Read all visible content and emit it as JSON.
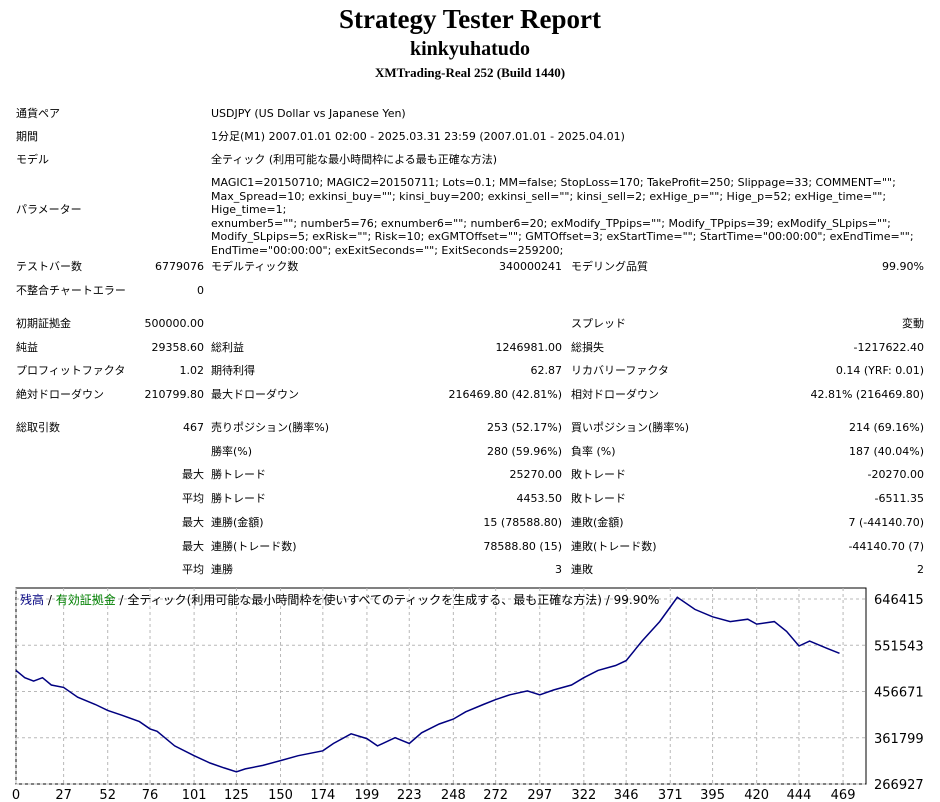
{
  "report": {
    "title": "Strategy Tester Report",
    "account": "kinkyuhatudo",
    "server": "XMTrading-Real 252 (Build 1440)"
  },
  "settings": {
    "pair_label": "通貨ペア",
    "pair_value": "USDJPY (US Dollar vs Japanese Yen)",
    "period_label": "期間",
    "period_value": "1分足(M1) 2007.01.01 02:00 - 2025.03.31 23:59 (2007.01.01 - 2025.04.01)",
    "model_label": "モデル",
    "model_value": "全ティック (利用可能な最小時間枠による最も正確な方法)",
    "params_label": "パラメーター",
    "params_value": "MAGIC1=20150710; MAGIC2=20150711; Lots=0.1; MM=false; StopLoss=170; TakeProfit=250; Slippage=33; COMMENT=\"\";\nMax_Spread=10; exkinsi_buy=\"\"; kinsi_buy=200; exkinsi_sell=\"\"; kinsi_sell=2; exHige_p=\"\"; Hige_p=52; exHige_time=\"\"; Hige_time=1;\nexnumber5=\"\"; number5=76; exnumber6=\"\"; number6=20; exModify_TPpips=\"\"; Modify_TPpips=39; exModify_SLpips=\"\";\nModify_SLpips=5; exRisk=\"\"; Risk=10; exGMTOffset=\"\"; GMTOffset=3; exStartTime=\"\"; StartTime=\"00:00:00\"; exEndTime=\"\";\nEndTime=\"00:00:00\"; exExitSeconds=\"\"; ExitSeconds=259200;"
  },
  "stats": {
    "bars_label": "テストバー数",
    "bars_value": "6779076",
    "ticks_label": "モデルティック数",
    "ticks_value": "340000241",
    "quality_label": "モデリング品質",
    "quality_value": "99.90%",
    "mismatch_label": "不整合チャートエラー",
    "mismatch_value": "0",
    "deposit_label": "初期証拠金",
    "deposit_value": "500000.00",
    "spread_label": "スプレッド",
    "spread_value": "変動",
    "net_label": "純益",
    "net_value": "29358.60",
    "gross_profit_label": "総利益",
    "gross_profit_value": "1246981.00",
    "gross_loss_label": "総損失",
    "gross_loss_value": "-1217622.40",
    "pf_label": "プロフィットファクタ",
    "pf_value": "1.02",
    "expected_label": "期待利得",
    "expected_value": "62.87",
    "recovery_label": "リカバリーファクタ",
    "recovery_value": "0.14 (YRF: 0.01)",
    "abs_dd_label": "絶対ドローダウン",
    "abs_dd_value": "210799.80",
    "max_dd_label": "最大ドローダウン",
    "max_dd_value": "216469.80 (42.81%)",
    "rel_dd_label": "相対ドローダウン",
    "rel_dd_value": "42.81% (216469.80)",
    "total_trades_label": "総取引数",
    "total_trades_value": "467",
    "short_label": "売りポジション(勝率%)",
    "short_value": "253 (52.17%)",
    "long_label": "買いポジション(勝率%)",
    "long_value": "214 (69.16%)",
    "win_rate_label": "勝率(%)",
    "win_rate_value": "280 (59.96%)",
    "loss_rate_label": "負率 (%)",
    "loss_rate_value": "187 (40.04%)",
    "max_prefix": "最大",
    "avg_prefix": "平均",
    "max_win_label": "勝トレード",
    "max_win_value": "25270.00",
    "max_loss_label": "敗トレード",
    "max_loss_value": "-20270.00",
    "avg_win_label": "勝トレード",
    "avg_win_value": "4453.50",
    "avg_loss_label": "敗トレード",
    "avg_loss_value": "-6511.35",
    "max_cons_win_amt_label": "連勝(金額)",
    "max_cons_win_amt_value": "15 (78588.80)",
    "max_cons_loss_amt_label": "連敗(金額)",
    "max_cons_loss_amt_value": "7 (-44140.70)",
    "max_cons_win_cnt_label": "連勝(トレード数)",
    "max_cons_win_cnt_value": "78588.80 (15)",
    "max_cons_loss_cnt_label": "連敗(トレード数)",
    "max_cons_loss_cnt_value": "-44140.70 (7)",
    "avg_cons_win_label": "連勝",
    "avg_cons_win_value": "3",
    "avg_cons_loss_label": "連敗",
    "avg_cons_loss_value": "2"
  },
  "chart_data": {
    "type": "line",
    "legend_balance": "残高",
    "legend_sep": " / ",
    "legend_equity": "有効証拠金",
    "legend_rest": " / 全ティック(利用可能な最小時間枠を使いすべてのティックを生成する、最も正確な方法) / 99.90%",
    "balance_color": "#000080",
    "equity_color": "#008000",
    "ylim": [
      266927,
      669000
    ],
    "xlim": [
      0,
      482
    ],
    "yticks": [
      646415,
      551543,
      456671,
      361799,
      266927
    ],
    "xticks": [
      0,
      27,
      52,
      76,
      101,
      125,
      150,
      174,
      199,
      223,
      248,
      272,
      297,
      322,
      346,
      371,
      395,
      420,
      444,
      469
    ],
    "series": [
      {
        "x": [
          0,
          5,
          10,
          15,
          20,
          27,
          35,
          45,
          52,
          60,
          70,
          76,
          80,
          90,
          101,
          110,
          118,
          125,
          130,
          140,
          150,
          160,
          174,
          180,
          190,
          199,
          205,
          215,
          223,
          230,
          240,
          248,
          255,
          265,
          272,
          280,
          290,
          297,
          305,
          315,
          322,
          330,
          340,
          346,
          355,
          365,
          371,
          375,
          385,
          395,
          405,
          415,
          420,
          430,
          437,
          444,
          450,
          460,
          467
        ],
        "y": [
          500000,
          485000,
          478000,
          485000,
          470000,
          465000,
          445000,
          430000,
          418000,
          408000,
          395000,
          380000,
          375000,
          345000,
          325000,
          310000,
          300000,
          292000,
          298000,
          305000,
          315000,
          325000,
          335000,
          350000,
          370000,
          360000,
          345000,
          362000,
          350000,
          372000,
          390000,
          400000,
          415000,
          430000,
          440000,
          450000,
          458000,
          450000,
          460000,
          470000,
          485000,
          500000,
          510000,
          520000,
          560000,
          600000,
          630000,
          650000,
          625000,
          610000,
          600000,
          605000,
          595000,
          600000,
          580000,
          550000,
          560000,
          545000,
          535000
        ]
      }
    ]
  }
}
